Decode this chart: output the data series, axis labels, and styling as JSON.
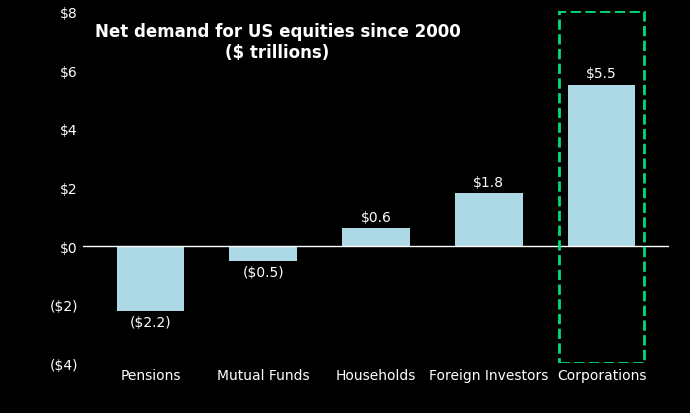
{
  "categories": [
    "Pensions",
    "Mutual Funds",
    "Households",
    "Foreign Investors",
    "Corporations"
  ],
  "values": [
    -2.2,
    -0.5,
    0.6,
    1.8,
    5.5
  ],
  "labels": [
    "($2.2)",
    "($0.5)",
    "$0.6",
    "$1.8",
    "$5.5"
  ],
  "bar_color": "#add8e6",
  "background_color": "#000000",
  "text_color": "#ffffff",
  "title_line1": "Net demand for US equities since 2000",
  "title_line2": "($ trillions)",
  "ylim": [
    -4,
    8
  ],
  "yticks": [
    -4,
    -2,
    0,
    2,
    4,
    6,
    8
  ],
  "ytick_labels": [
    "($4)",
    "($2)",
    "$0",
    "$2",
    "$4",
    "$6",
    "$8"
  ],
  "highlight_index": 4,
  "highlight_color": "#00dd77",
  "bar_width": 0.6,
  "title_fontsize": 12,
  "tick_fontsize": 10,
  "label_fontsize": 10
}
